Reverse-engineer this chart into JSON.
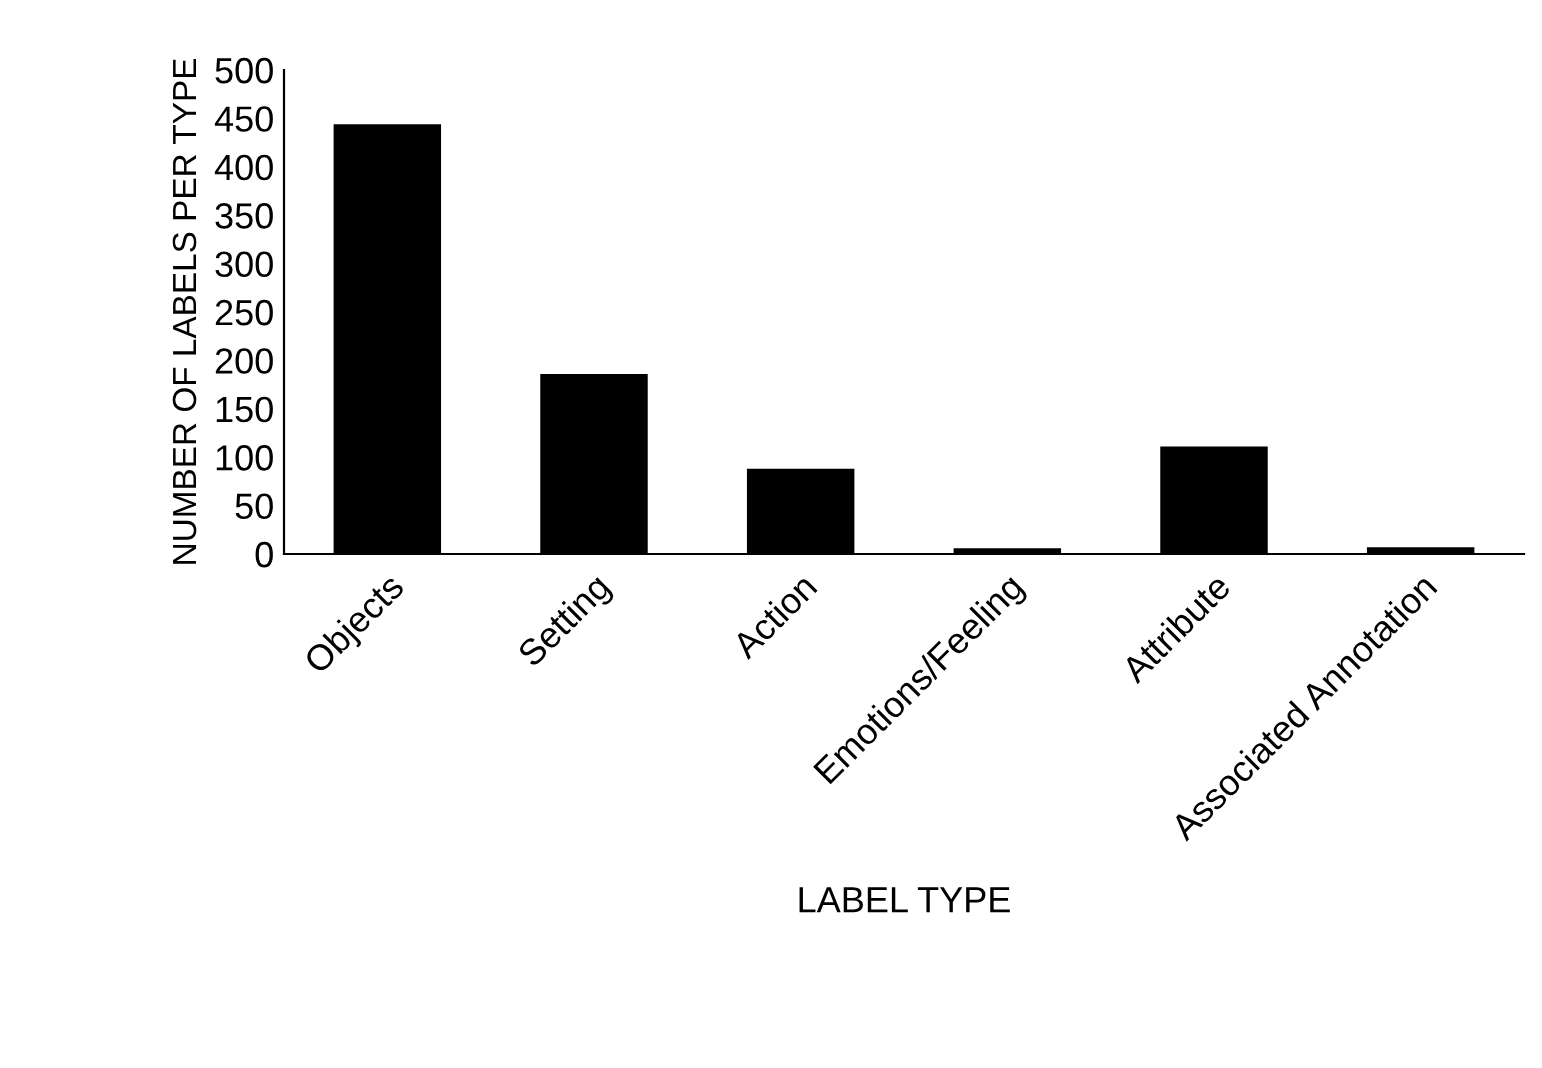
{
  "chart_data": {
    "type": "bar",
    "xlabel": "LABEL TYPE",
    "ylabel": "NUMBER OF LABELS PER TYPE",
    "categories": [
      "Objects",
      "Setting",
      "Action",
      "Emotions/Feeling",
      "Attribute",
      "Associated Annotation"
    ],
    "values": [
      444,
      186,
      88,
      6,
      111,
      7
    ],
    "color": "#000000",
    "ylim": [
      0,
      500
    ],
    "yticks": [
      0,
      50,
      100,
      150,
      200,
      250,
      300,
      350,
      400,
      450,
      500
    ],
    "grid": false,
    "legend": false
  }
}
